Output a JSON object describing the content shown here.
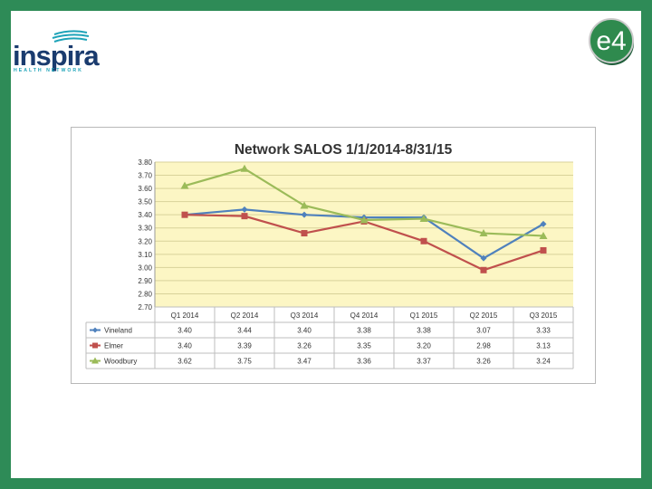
{
  "header": {
    "logo_word": "inspira",
    "logo_tagline": "HEALTH NETWORK",
    "badge_text": "e4"
  },
  "colors": {
    "frame": "#2e8b57",
    "plot_bg": "#fcf6c4",
    "grid": "#d8d29a"
  },
  "chart_data": {
    "type": "line",
    "title": "Network SALOS 1/1/2014-8/31/15",
    "categories": [
      "Q1 2014",
      "Q2 2014",
      "Q3 2014",
      "Q4 2014",
      "Q1 2015",
      "Q2 2015",
      "Q3 2015"
    ],
    "ylim": [
      2.7,
      3.8
    ],
    "yticks": [
      "3.80",
      "3.70",
      "3.60",
      "3.50",
      "3.40",
      "3.30",
      "3.20",
      "3.10",
      "3.00",
      "2.90",
      "2.80",
      "2.70"
    ],
    "grid": true,
    "legend": "data-table",
    "series": [
      {
        "name": "Vineland",
        "color": "#4f81bd",
        "marker": "diamond",
        "values": [
          3.4,
          3.44,
          3.4,
          3.38,
          3.38,
          3.07,
          3.33
        ],
        "labels": [
          "3.40",
          "3.44",
          "3.40",
          "3.38",
          "3.38",
          "3.07",
          "3.33"
        ]
      },
      {
        "name": "Elmer",
        "color": "#c0504d",
        "marker": "square",
        "values": [
          3.4,
          3.39,
          3.26,
          3.35,
          3.2,
          2.98,
          3.13
        ],
        "labels": [
          "3.40",
          "3.39",
          "3.26",
          "3.35",
          "3.20",
          "2.98",
          "3.13"
        ]
      },
      {
        "name": "Woodbury",
        "color": "#9bbb59",
        "marker": "triangle",
        "values": [
          3.62,
          3.75,
          3.47,
          3.36,
          3.37,
          3.26,
          3.24
        ],
        "labels": [
          "3.62",
          "3.75",
          "3.47",
          "3.36",
          "3.37",
          "3.26",
          "3.24"
        ]
      }
    ]
  }
}
